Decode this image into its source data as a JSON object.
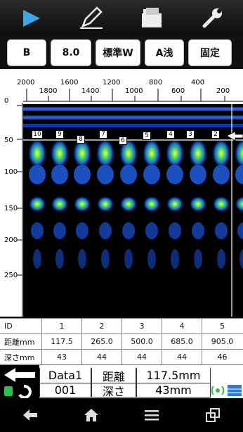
{
  "toolbar": {
    "play": "play-icon",
    "pen": "pen-icon",
    "folder": "folder-icon",
    "wrench": "wrench-icon"
  },
  "settings": {
    "mode": "B",
    "value": "8.0",
    "preset": "標準W",
    "range": "A浅",
    "fix": "固定"
  },
  "ruler": {
    "top_ticks": [
      "2000",
      "1600",
      "1200",
      "800",
      "400"
    ],
    "bottom_ticks": [
      "1800",
      "1400",
      "1000",
      "600",
      "200"
    ],
    "depth_ticks": [
      "0",
      "50",
      "100",
      "150",
      "200",
      "250"
    ]
  },
  "markers": [
    "10",
    "9",
    "8",
    "7",
    "6",
    "5",
    "4",
    "3",
    "2"
  ],
  "table": {
    "id_label": "ID",
    "dist_label": "距離mm",
    "depth_label": "深さmm",
    "ids": [
      "1",
      "2",
      "3",
      "4",
      "5"
    ],
    "distances": [
      "117.5",
      "265.0",
      "500.0",
      "685.0",
      "905.0"
    ],
    "depths": [
      "43",
      "44",
      "44",
      "44",
      "46"
    ]
  },
  "status": {
    "data_name": "Data1",
    "data_number": "001",
    "dist_label": "距離",
    "dist_value": "117.5mm",
    "depth_label": "深さ",
    "depth_value": "43mm"
  },
  "navbar": {
    "back": "back-icon",
    "home": "home-icon",
    "menu": "menu-icon",
    "recent": "recent-apps-icon"
  }
}
